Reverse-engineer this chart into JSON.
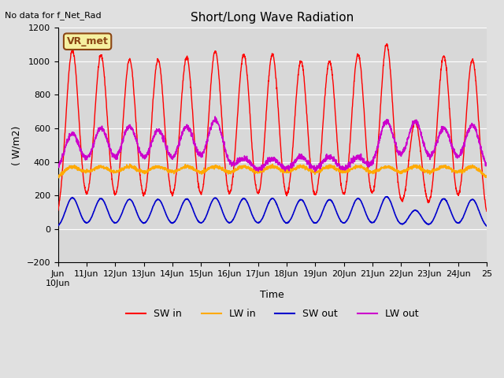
{
  "title": "Short/Long Wave Radiation",
  "no_data_text": "No data for f_Net_Rad",
  "ylabel": "( W/m2)",
  "xlabel": "Time",
  "ylim": [
    -200,
    1200
  ],
  "bg_color": "#e0e0e0",
  "plot_bg_color": "#d8d8d8",
  "grid_color": "white",
  "xtick_positions": [
    0,
    1,
    2,
    3,
    4,
    5,
    6,
    7,
    8,
    9,
    10,
    11,
    12,
    13,
    14,
    15
  ],
  "xtick_labels": [
    "Jun\n10Jun",
    "11Jun",
    "12Jun",
    "13Jun",
    "14Jun",
    "15Jun",
    "16Jun",
    "17Jun",
    "18Jun",
    "19Jun",
    "20Jun",
    "21Jun",
    "22Jun",
    "23Jun",
    "24Jun",
    "25"
  ],
  "legend_items": [
    {
      "label": "SW in",
      "color": "#ff0000"
    },
    {
      "label": "LW in",
      "color": "#ffaa00"
    },
    {
      "label": "SW out",
      "color": "#0000cc"
    },
    {
      "label": "LW out",
      "color": "#cc00cc"
    }
  ],
  "annotation_box": "VR_met",
  "num_days": 15,
  "sw_in_peaks": [
    1065,
    1035,
    1010,
    1010,
    1025,
    1060,
    1040,
    1040,
    1000,
    1000,
    1040,
    1100,
    640,
    1030,
    1010
  ],
  "lw_in_base": 280,
  "lw_in_day_peak": 370,
  "sw_out_peak": 180,
  "lw_out_base": 320,
  "lw_out_day_peak": [
    570,
    600,
    610,
    590,
    610,
    650,
    420,
    420,
    430,
    430,
    430,
    640,
    640,
    600,
    620
  ]
}
